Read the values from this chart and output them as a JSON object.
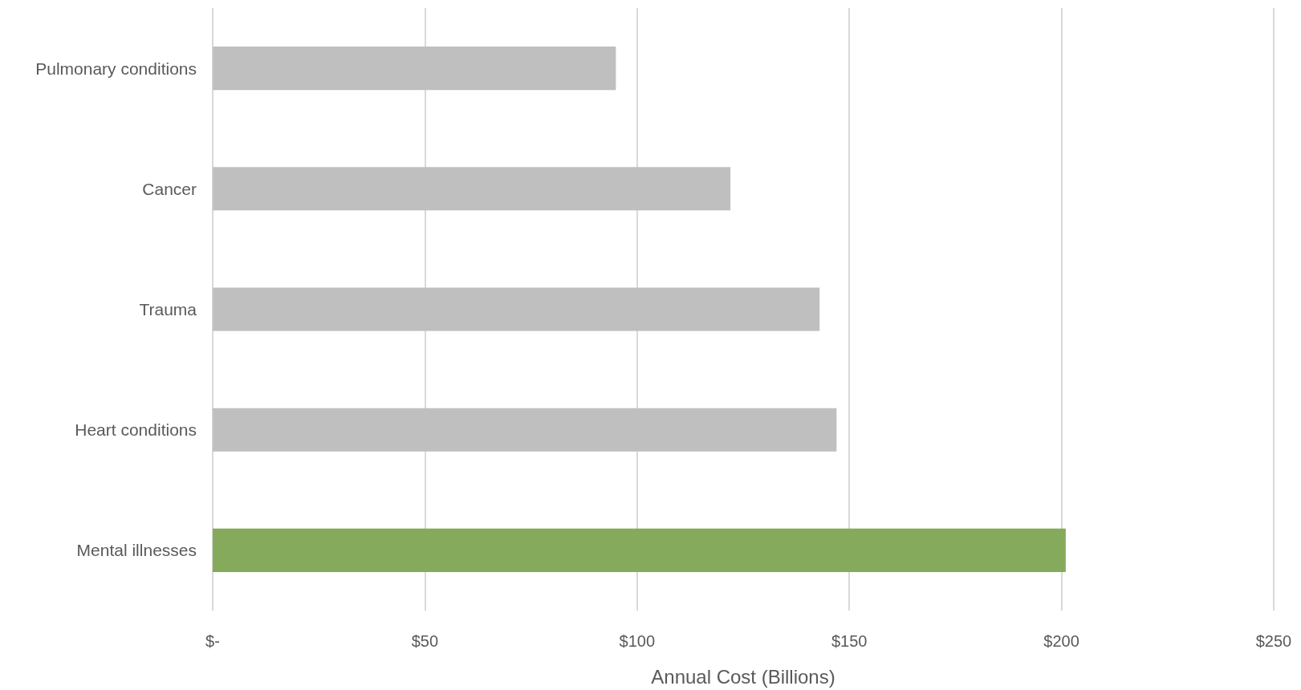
{
  "chart_data": {
    "type": "bar",
    "orientation": "horizontal",
    "xlabel": "Annual Cost (Billions)",
    "categories": [
      "Pulmonary conditions",
      "Cancer",
      "Trauma",
      "Heart conditions",
      "Mental illnesses"
    ],
    "values": [
      95,
      122,
      143,
      147,
      201
    ],
    "colors": [
      "#bfbfbf",
      "#bfbfbf",
      "#bfbfbf",
      "#bfbfbf",
      "#86aa5c"
    ],
    "xlim": [
      0,
      250
    ],
    "xticks": [
      {
        "value": 0,
        "label": "$-"
      },
      {
        "value": 50,
        "label": "$50"
      },
      {
        "value": 100,
        "label": "$100"
      },
      {
        "value": 150,
        "label": "$150"
      },
      {
        "value": 200,
        "label": "$200"
      },
      {
        "value": 250,
        "label": "$250"
      }
    ],
    "grid": "x"
  }
}
